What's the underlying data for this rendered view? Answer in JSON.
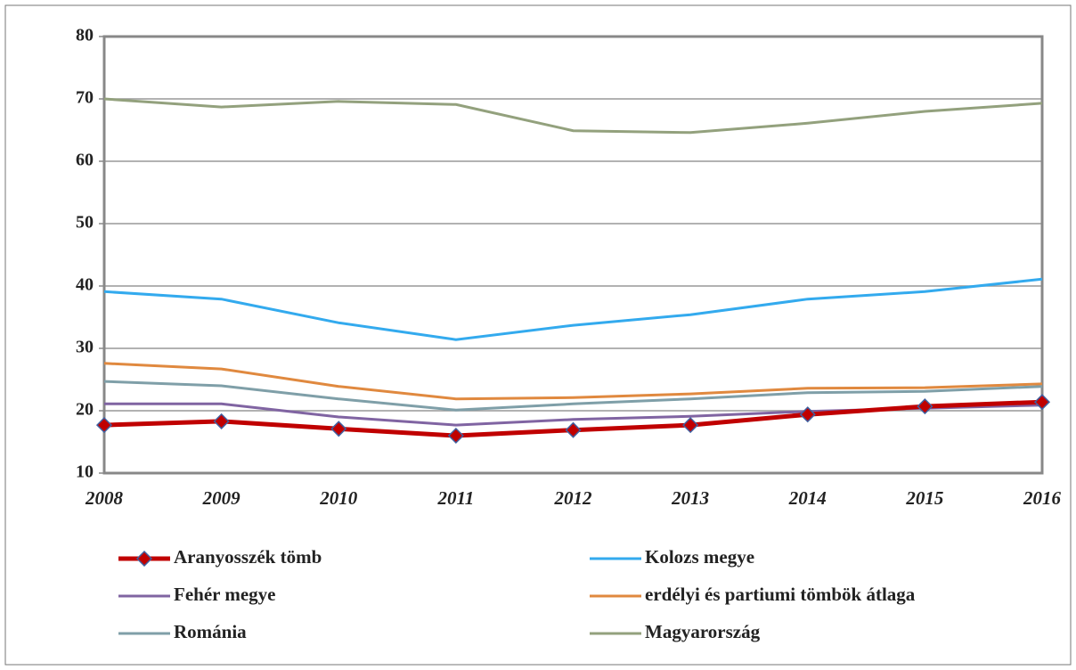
{
  "chart_data": {
    "type": "line",
    "x": [
      "2008",
      "2009",
      "2010",
      "2011",
      "2012",
      "2013",
      "2014",
      "2015",
      "2016"
    ],
    "ylim": [
      10,
      80
    ],
    "yticks": [
      10,
      20,
      30,
      40,
      50,
      60,
      70,
      80
    ],
    "grid": true,
    "series": [
      {
        "name": "Aranyosszék tömb",
        "color": "#c00000",
        "marker": "diamond",
        "values": [
          17.7,
          18.3,
          17.1,
          16.0,
          16.9,
          17.7,
          19.4,
          20.7,
          21.4
        ]
      },
      {
        "name": "Kolozs megye",
        "color": "#33aaee",
        "values": [
          39.1,
          37.9,
          34.1,
          31.4,
          33.7,
          35.4,
          37.9,
          39.1,
          41.1
        ]
      },
      {
        "name": "Fehér megye",
        "color": "#8064a2",
        "values": [
          21.1,
          21.1,
          19.0,
          17.7,
          18.6,
          19.1,
          19.9,
          20.4,
          20.9
        ]
      },
      {
        "name": "erdélyi és partiumi tömbök átlaga",
        "color": "#e0893f",
        "values": [
          27.6,
          26.7,
          23.9,
          21.9,
          22.1,
          22.7,
          23.6,
          23.7,
          24.3
        ]
      },
      {
        "name": "Románia",
        "color": "#7f9fa8",
        "values": [
          24.7,
          24.0,
          21.9,
          20.1,
          21.1,
          21.9,
          22.9,
          23.1,
          23.9
        ]
      },
      {
        "name": "Magyarország",
        "color": "#93a17d",
        "values": [
          70.0,
          68.7,
          69.6,
          69.1,
          64.9,
          64.6,
          66.1,
          68.0,
          69.3
        ]
      }
    ]
  }
}
